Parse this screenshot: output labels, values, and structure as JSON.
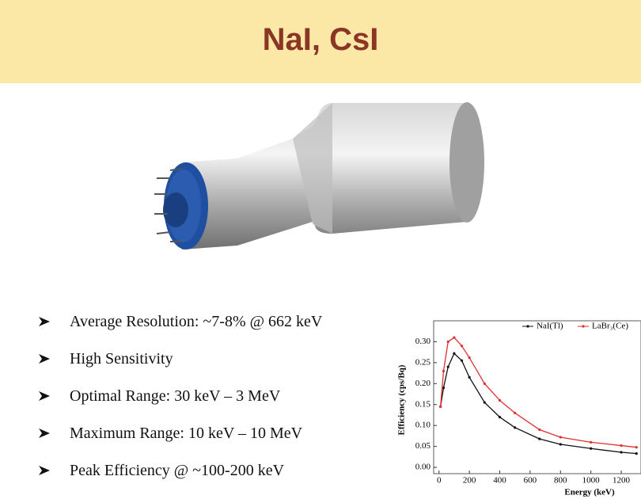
{
  "title": "NaI, CsI",
  "bullets": [
    "Average Resolution: ~7-8% @ 662 keV",
    "High Sensitivity",
    "Optimal Range: 30 keV – 3 MeV",
    "Maximum Range: 10 keV – 10 MeV",
    "Peak Efficiency @ ~100-200 keV"
  ],
  "chart_data": {
    "type": "line",
    "x_label": "Energy (keV)",
    "y_label": "Efficiency (cps/Bq)",
    "x": [
      10,
      30,
      60,
      100,
      150,
      200,
      300,
      400,
      500,
      662,
      800,
      1000,
      1200,
      1300
    ],
    "series": [
      {
        "name": "NaI(Tl)",
        "color": "#111111",
        "values": [
          0.145,
          0.19,
          0.24,
          0.272,
          0.255,
          0.215,
          0.155,
          0.12,
          0.095,
          0.068,
          0.055,
          0.045,
          0.036,
          0.033
        ]
      },
      {
        "name": "LaBr₃(Ce)",
        "color": "#e03030",
        "values": [
          0.145,
          0.23,
          0.3,
          0.31,
          0.29,
          0.262,
          0.2,
          0.16,
          0.13,
          0.09,
          0.072,
          0.06,
          0.052,
          0.048
        ]
      }
    ],
    "xlim": [
      -35,
      1330
    ],
    "ylim": [
      -0.015,
      0.35
    ],
    "xticks": [
      0,
      200,
      400,
      600,
      800,
      1000,
      1200
    ],
    "yticks": [
      {
        "value": 0,
        "label": "0.00"
      },
      {
        "value": 0.05,
        "label": "0.05"
      },
      {
        "value": 0.1,
        "label": "0.10"
      },
      {
        "value": 0.15,
        "label": "0.15"
      },
      {
        "value": 0.2,
        "label": "0.20"
      },
      {
        "value": 0.25,
        "label": "0.25"
      },
      {
        "value": 0.3,
        "label": "0.30"
      }
    ],
    "legend": "top"
  }
}
